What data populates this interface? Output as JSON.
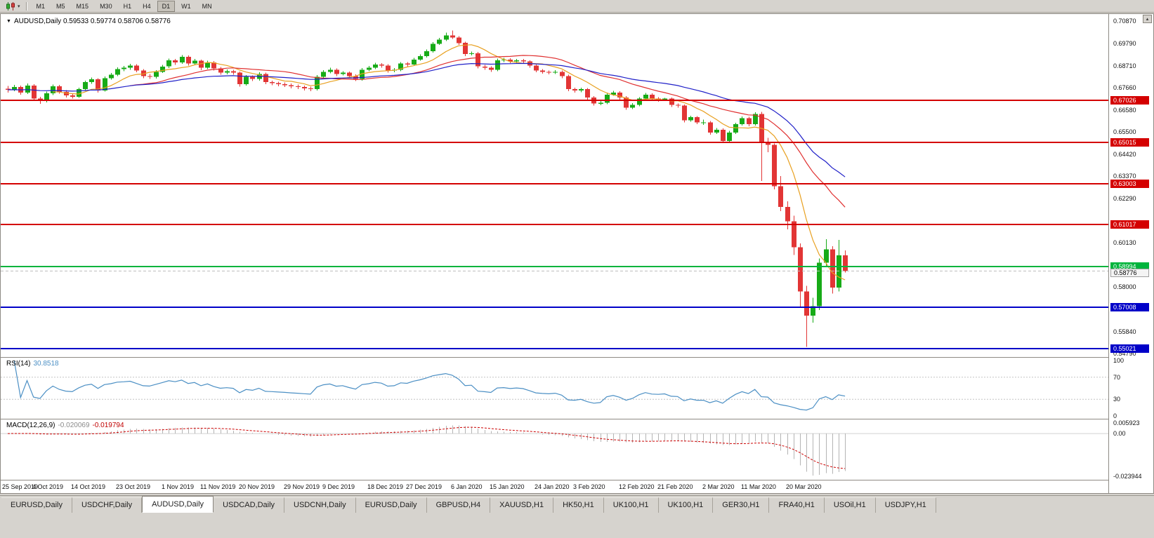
{
  "toolbar": {
    "chart_type_icon": "candlestick-chart-icon",
    "dropdown_glyph": "▾",
    "timeframes": [
      "M1",
      "M5",
      "M15",
      "M30",
      "H1",
      "H4",
      "D1",
      "W1",
      "MN"
    ],
    "active_timeframe": "D1"
  },
  "chart_window": {
    "title_marker": "▼",
    "title": "AUDUSD,Daily 0.59533 0.59774 0.58706 0.58776",
    "scroll_arrow": "▴"
  },
  "chart_data": {
    "type": "candlestick",
    "symbol": "AUDUSD",
    "timeframe": "Daily",
    "ohlc": {
      "open": "0.59533",
      "high": "0.59774",
      "low": "0.58706",
      "close": "0.58776"
    },
    "y_axis": {
      "price_min": 0.5461,
      "price_max": 0.7122,
      "labels": [
        {
          "text": "0.70870",
          "price": 0.7087
        },
        {
          "text": "0.69790",
          "price": 0.6979
        },
        {
          "text": "0.68710",
          "price": 0.6871
        },
        {
          "text": "0.67660",
          "price": 0.6766
        },
        {
          "text": "0.66580",
          "price": 0.6658
        },
        {
          "text": "0.65500",
          "price": 0.655
        },
        {
          "text": "0.64420",
          "price": 0.6442
        },
        {
          "text": "0.63370",
          "price": 0.6337
        },
        {
          "text": "0.62290",
          "price": 0.6229
        },
        {
          "text": "0.60130",
          "price": 0.6013
        },
        {
          "text": "0.58000",
          "price": 0.58
        },
        {
          "text": "0.55840",
          "price": 0.5584
        },
        {
          "text": "0.54790",
          "price": 0.5479
        }
      ]
    },
    "x_axis": {
      "date_labels": [
        {
          "text": "25 Sep 2019",
          "i": 0
        },
        {
          "text": "4 Oct 2019",
          "i": 7
        },
        {
          "text": "14 Oct 2019",
          "i": 13
        },
        {
          "text": "23 Oct 2019",
          "i": 20
        },
        {
          "text": "1 Nov 2019",
          "i": 27
        },
        {
          "text": "11 Nov 2019",
          "i": 33
        },
        {
          "text": "20 Nov 2019",
          "i": 39
        },
        {
          "text": "29 Nov 2019",
          "i": 46
        },
        {
          "text": "9 Dec 2019",
          "i": 52
        },
        {
          "text": "18 Dec 2019",
          "i": 59
        },
        {
          "text": "27 Dec 2019",
          "i": 65
        },
        {
          "text": "6 Jan 2020",
          "i": 72
        },
        {
          "text": "15 Jan 2020",
          "i": 78
        },
        {
          "text": "24 Jan 2020",
          "i": 85
        },
        {
          "text": "3 Feb 2020",
          "i": 91
        },
        {
          "text": "12 Feb 2020",
          "i": 98
        },
        {
          "text": "21 Feb 2020",
          "i": 104
        },
        {
          "text": "2 Mar 2020",
          "i": 111
        },
        {
          "text": "11 Mar 2020",
          "i": 117
        },
        {
          "text": "20 Mar 2020",
          "i": 124
        }
      ]
    },
    "candles": [
      [
        0.676,
        0.6773,
        0.6742,
        0.6755
      ],
      [
        0.6755,
        0.6779,
        0.6748,
        0.6768
      ],
      [
        0.6768,
        0.6776,
        0.6731,
        0.6742
      ],
      [
        0.6742,
        0.6786,
        0.6735,
        0.6775
      ],
      [
        0.6775,
        0.6782,
        0.6702,
        0.6712
      ],
      [
        0.6712,
        0.6722,
        0.6688,
        0.6701
      ],
      [
        0.6701,
        0.6747,
        0.6694,
        0.6738
      ],
      [
        0.6738,
        0.6781,
        0.673,
        0.6772
      ],
      [
        0.6772,
        0.6779,
        0.6736,
        0.6745
      ],
      [
        0.6745,
        0.6753,
        0.6718,
        0.6728
      ],
      [
        0.6728,
        0.6737,
        0.6713,
        0.6722
      ],
      [
        0.6722,
        0.6766,
        0.6716,
        0.6758
      ],
      [
        0.6758,
        0.68,
        0.6752,
        0.6792
      ],
      [
        0.6792,
        0.6815,
        0.6784,
        0.6806
      ],
      [
        0.6806,
        0.6812,
        0.6742,
        0.6752
      ],
      [
        0.6752,
        0.682,
        0.6746,
        0.6812
      ],
      [
        0.6812,
        0.6836,
        0.6804,
        0.6828
      ],
      [
        0.6828,
        0.6864,
        0.6821,
        0.6856
      ],
      [
        0.6856,
        0.6871,
        0.6846,
        0.6862
      ],
      [
        0.6862,
        0.688,
        0.6852,
        0.6872
      ],
      [
        0.6872,
        0.6879,
        0.684,
        0.6848
      ],
      [
        0.6848,
        0.6855,
        0.6812,
        0.6822
      ],
      [
        0.6822,
        0.6831,
        0.6808,
        0.6818
      ],
      [
        0.6818,
        0.685,
        0.681,
        0.6842
      ],
      [
        0.6842,
        0.6876,
        0.6836,
        0.6868
      ],
      [
        0.6868,
        0.6906,
        0.686,
        0.6898
      ],
      [
        0.6898,
        0.6905,
        0.6876,
        0.6888
      ],
      [
        0.6888,
        0.6924,
        0.688,
        0.6915
      ],
      [
        0.6915,
        0.6921,
        0.6872,
        0.6882
      ],
      [
        0.6882,
        0.6904,
        0.6874,
        0.6896
      ],
      [
        0.6896,
        0.6901,
        0.685,
        0.6862
      ],
      [
        0.6862,
        0.6896,
        0.6855,
        0.6888
      ],
      [
        0.6888,
        0.6894,
        0.6848,
        0.6858
      ],
      [
        0.6858,
        0.6865,
        0.6828,
        0.6838
      ],
      [
        0.6838,
        0.6853,
        0.683,
        0.6845
      ],
      [
        0.6845,
        0.6852,
        0.6828,
        0.6838
      ],
      [
        0.6838,
        0.6844,
        0.677,
        0.6782
      ],
      [
        0.6782,
        0.6826,
        0.6776,
        0.6818
      ],
      [
        0.6818,
        0.6825,
        0.6798,
        0.6808
      ],
      [
        0.6808,
        0.684,
        0.68,
        0.6832
      ],
      [
        0.6832,
        0.6838,
        0.6782,
        0.6792
      ],
      [
        0.6792,
        0.68,
        0.6778,
        0.6788
      ],
      [
        0.6788,
        0.6795,
        0.6772,
        0.6782
      ],
      [
        0.6782,
        0.679,
        0.6768,
        0.6778
      ],
      [
        0.6778,
        0.6785,
        0.6762,
        0.6772
      ],
      [
        0.6772,
        0.678,
        0.6758,
        0.6768
      ],
      [
        0.6768,
        0.6775,
        0.6752,
        0.6762
      ],
      [
        0.6762,
        0.677,
        0.6748,
        0.6758
      ],
      [
        0.6758,
        0.6826,
        0.6752,
        0.6818
      ],
      [
        0.6818,
        0.685,
        0.6812,
        0.6842
      ],
      [
        0.6842,
        0.6862,
        0.6835,
        0.6852
      ],
      [
        0.6852,
        0.6858,
        0.6822,
        0.6832
      ],
      [
        0.6832,
        0.6846,
        0.6824,
        0.6838
      ],
      [
        0.6838,
        0.6844,
        0.6812,
        0.6822
      ],
      [
        0.6822,
        0.683,
        0.6798,
        0.6808
      ],
      [
        0.6808,
        0.686,
        0.68,
        0.6852
      ],
      [
        0.6852,
        0.687,
        0.6845,
        0.6862
      ],
      [
        0.6862,
        0.6886,
        0.6855,
        0.6878
      ],
      [
        0.6878,
        0.6885,
        0.6862,
        0.6872
      ],
      [
        0.6872,
        0.6879,
        0.6838,
        0.6848
      ],
      [
        0.6848,
        0.686,
        0.684,
        0.6852
      ],
      [
        0.6852,
        0.689,
        0.6846,
        0.6882
      ],
      [
        0.6882,
        0.6889,
        0.6868,
        0.6878
      ],
      [
        0.6878,
        0.691,
        0.6872,
        0.6902
      ],
      [
        0.6902,
        0.6926,
        0.6896,
        0.6918
      ],
      [
        0.6918,
        0.695,
        0.6912,
        0.6942
      ],
      [
        0.6942,
        0.6986,
        0.6936,
        0.6978
      ],
      [
        0.6978,
        0.7006,
        0.6972,
        0.6998
      ],
      [
        0.6998,
        0.7032,
        0.6992,
        0.7018
      ],
      [
        0.7018,
        0.7042,
        0.7002,
        0.7008
      ],
      [
        0.7008,
        0.7015,
        0.6972,
        0.6982
      ],
      [
        0.6982,
        0.6988,
        0.6918,
        0.6928
      ],
      [
        0.6928,
        0.694,
        0.6922,
        0.6932
      ],
      [
        0.6932,
        0.6938,
        0.6858,
        0.6868
      ],
      [
        0.6868,
        0.6876,
        0.6852,
        0.6862
      ],
      [
        0.6862,
        0.6869,
        0.6842,
        0.6852
      ],
      [
        0.6852,
        0.6906,
        0.6846,
        0.6898
      ],
      [
        0.6898,
        0.691,
        0.689,
        0.6902
      ],
      [
        0.6902,
        0.6908,
        0.6884,
        0.6892
      ],
      [
        0.6892,
        0.6905,
        0.6885,
        0.6898
      ],
      [
        0.6898,
        0.6904,
        0.6882,
        0.6892
      ],
      [
        0.6892,
        0.6898,
        0.6862,
        0.6872
      ],
      [
        0.6872,
        0.6878,
        0.684,
        0.6848
      ],
      [
        0.6848,
        0.6855,
        0.6834,
        0.6842
      ],
      [
        0.6842,
        0.6849,
        0.683,
        0.6838
      ],
      [
        0.6838,
        0.685,
        0.6832,
        0.6842
      ],
      [
        0.6842,
        0.6848,
        0.6812,
        0.6822
      ],
      [
        0.6822,
        0.6828,
        0.6748,
        0.6758
      ],
      [
        0.6758,
        0.6766,
        0.6742,
        0.6752
      ],
      [
        0.6752,
        0.6765,
        0.6744,
        0.6758
      ],
      [
        0.6758,
        0.6764,
        0.6708,
        0.6718
      ],
      [
        0.6718,
        0.6724,
        0.6678,
        0.6688
      ],
      [
        0.6688,
        0.67,
        0.668,
        0.6692
      ],
      [
        0.6692,
        0.674,
        0.6686,
        0.6732
      ],
      [
        0.6732,
        0.675,
        0.6726,
        0.6742
      ],
      [
        0.6742,
        0.6748,
        0.6708,
        0.6718
      ],
      [
        0.6718,
        0.6724,
        0.6658,
        0.6668
      ],
      [
        0.6668,
        0.669,
        0.6662,
        0.6682
      ],
      [
        0.6682,
        0.672,
        0.6676,
        0.6712
      ],
      [
        0.6712,
        0.674,
        0.6706,
        0.6732
      ],
      [
        0.6732,
        0.6738,
        0.6702,
        0.6712
      ],
      [
        0.6712,
        0.6719,
        0.6698,
        0.6708
      ],
      [
        0.6708,
        0.6716,
        0.67,
        0.6712
      ],
      [
        0.6712,
        0.6718,
        0.6672,
        0.6682
      ],
      [
        0.6682,
        0.6689,
        0.6668,
        0.6678
      ],
      [
        0.6678,
        0.6684,
        0.6598,
        0.6608
      ],
      [
        0.6608,
        0.663,
        0.66,
        0.6622
      ],
      [
        0.6622,
        0.6628,
        0.6588,
        0.6598
      ],
      [
        0.6598,
        0.661,
        0.6585,
        0.6598
      ],
      [
        0.6598,
        0.6604,
        0.6538,
        0.6548
      ],
      [
        0.6548,
        0.657,
        0.6542,
        0.6562
      ],
      [
        0.6562,
        0.6568,
        0.6498,
        0.6508
      ],
      [
        0.6508,
        0.6556,
        0.6502,
        0.6548
      ],
      [
        0.6548,
        0.6596,
        0.6542,
        0.6588
      ],
      [
        0.6588,
        0.6626,
        0.6582,
        0.6618
      ],
      [
        0.6618,
        0.6624,
        0.6578,
        0.6588
      ],
      [
        0.6588,
        0.6646,
        0.6582,
        0.6638
      ],
      [
        0.6638,
        0.6648,
        0.6313,
        0.6498
      ],
      [
        0.6498,
        0.6522,
        0.6452,
        0.6488
      ],
      [
        0.6488,
        0.6495,
        0.6272,
        0.6288
      ],
      [
        0.6288,
        0.6338,
        0.6168,
        0.6188
      ],
      [
        0.6188,
        0.6215,
        0.608,
        0.6118
      ],
      [
        0.6118,
        0.6145,
        0.5955,
        0.5992
      ],
      [
        0.5992,
        0.6012,
        0.5702,
        0.5778
      ],
      [
        0.5778,
        0.5805,
        0.551,
        0.5662
      ],
      [
        0.5662,
        0.5748,
        0.5628,
        0.5708
      ],
      [
        0.5708,
        0.5938,
        0.5688,
        0.5918
      ],
      [
        0.5918,
        0.6032,
        0.5902,
        0.5982
      ],
      [
        0.5982,
        0.5998,
        0.5768,
        0.5798
      ],
      [
        0.5798,
        0.6028,
        0.5778,
        0.5953
      ],
      [
        0.59533,
        0.59774,
        0.58706,
        0.58776
      ]
    ],
    "moving_averages": [
      {
        "name": "ma-fast",
        "type": "sma",
        "period": 8,
        "color": "#e8a020"
      },
      {
        "name": "ma-mid",
        "type": "sma",
        "period": 20,
        "color": "#e03030"
      },
      {
        "name": "ma-slow",
        "type": "ema",
        "period": 40,
        "color": "#2020c8"
      }
    ],
    "hlines": [
      {
        "price": 0.67026,
        "label": "0.67026",
        "color": "#d40000"
      },
      {
        "price": 0.65015,
        "label": "0.65015",
        "color": "#d40000"
      },
      {
        "price": 0.63003,
        "label": "0.63003",
        "color": "#d40000"
      },
      {
        "price": 0.61017,
        "label": "0.61017",
        "color": "#d40000"
      },
      {
        "price": 0.58994,
        "label": "0.58994",
        "color": "#00b43c"
      },
      {
        "price": 0.57008,
        "label": "0.57008",
        "color": "#0000c8"
      },
      {
        "price": 0.55021,
        "label": "0.55021",
        "color": "#0000c8"
      }
    ],
    "bid": {
      "price": 0.58776,
      "label": "0.58776"
    },
    "rsi": {
      "label": "RSI(14)",
      "period": 14,
      "value": "30.8518",
      "levels": [
        {
          "text": "100",
          "v": 100
        },
        {
          "text": "70",
          "v": 70
        },
        {
          "text": "30",
          "v": 30
        },
        {
          "text": "0",
          "v": 0
        }
      ],
      "level_lines": [
        70,
        30
      ],
      "color": "#4b8fc4"
    },
    "macd": {
      "label": "MACD(12,26,9)",
      "fast": 12,
      "slow": 26,
      "signal": 9,
      "value_main": "-0.020069",
      "value_signal": "-0.019794",
      "axis_labels": [
        {
          "text": "0.005923",
          "v": 0.005923
        },
        {
          "text": "0.00",
          "v": 0
        },
        {
          "text": "-0.023944",
          "v": -0.023944
        }
      ],
      "range": [
        -0.023944,
        0.005923
      ],
      "hist_color": "#b4b4b4",
      "signal_color": "#cc0000"
    },
    "colors": {
      "up": "#17ab17",
      "down": "#e23535",
      "background": "#ffffff"
    }
  },
  "tabs": {
    "active_index": 2,
    "items": [
      "EURUSD,Daily",
      "USDCHF,Daily",
      "AUDUSD,Daily",
      "USDCAD,Daily",
      "USDCNH,Daily",
      "EURUSD,Daily",
      "GBPUSD,H4",
      "XAUUSD,H1",
      "HK50,H1",
      "UK100,H1",
      "UK100,H1",
      "GER30,H1",
      "FRA40,H1",
      "USOil,H1",
      "USDJPY,H1"
    ]
  }
}
